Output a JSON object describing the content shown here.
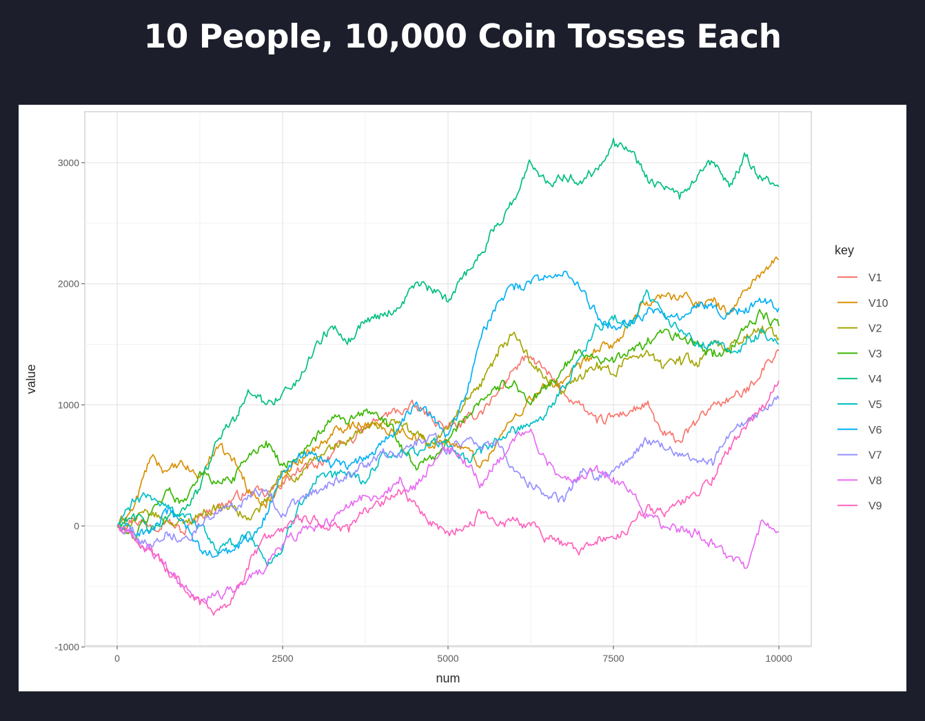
{
  "slide": {
    "title": "10 People, 10,000 Coin Tosses Each"
  },
  "chart_data": {
    "type": "line",
    "title": "10 People, 10,000 Coin Tosses Each",
    "xlabel": "num",
    "ylabel": "value",
    "xlim": [
      0,
      10000
    ],
    "ylim": [
      -1000,
      3400
    ],
    "x_ticks": [
      0,
      2500,
      5000,
      7500,
      10000
    ],
    "y_ticks": [
      -1000,
      0,
      1000,
      2000,
      3000
    ],
    "x_tick_labels": [
      "0",
      "2500",
      "5000",
      "7500",
      "10000"
    ],
    "y_tick_labels": [
      "-1000",
      "0",
      "1000",
      "2000",
      "3000"
    ],
    "grid": true,
    "legend": {
      "title": "key",
      "placement": "right"
    },
    "x": [
      0,
      250,
      500,
      750,
      1000,
      1250,
      1500,
      1750,
      2000,
      2250,
      2500,
      2750,
      3000,
      3250,
      3500,
      3750,
      4000,
      4250,
      4500,
      4750,
      5000,
      5250,
      5500,
      5750,
      6000,
      6250,
      6500,
      6750,
      7000,
      7250,
      7500,
      7750,
      8000,
      8250,
      8500,
      8750,
      9000,
      9250,
      9500,
      9750,
      10000
    ],
    "series": [
      {
        "name": "V1",
        "color": "#f8766d",
        "values": [
          0,
          60,
          10,
          50,
          -60,
          90,
          150,
          220,
          290,
          250,
          360,
          450,
          500,
          600,
          700,
          800,
          900,
          950,
          980,
          900,
          800,
          850,
          950,
          1100,
          1300,
          1400,
          1250,
          1100,
          1000,
          850,
          900,
          950,
          1000,
          750,
          700,
          850,
          1000,
          1050,
          1100,
          1300,
          1450
        ]
      },
      {
        "name": "V10",
        "color": "#d89000",
        "values": [
          0,
          150,
          560,
          450,
          500,
          400,
          650,
          550,
          300,
          150,
          400,
          550,
          650,
          750,
          850,
          850,
          800,
          800,
          750,
          650,
          700,
          650,
          500,
          700,
          900,
          1050,
          1150,
          1200,
          1300,
          1450,
          1500,
          1650,
          1850,
          1900,
          1900,
          1850,
          1850,
          1750,
          1950,
          2100,
          2200
        ]
      },
      {
        "name": "V2",
        "color": "#a3a500",
        "values": [
          0,
          50,
          100,
          50,
          20,
          100,
          150,
          150,
          50,
          200,
          450,
          400,
          550,
          650,
          700,
          800,
          850,
          850,
          750,
          700,
          800,
          1000,
          1150,
          1400,
          1600,
          1350,
          1200,
          1100,
          1250,
          1350,
          1250,
          1400,
          1450,
          1300,
          1400,
          1350,
          1500,
          1450,
          1550,
          1650,
          1550
        ]
      },
      {
        "name": "V3",
        "color": "#39b600",
        "values": [
          0,
          -100,
          100,
          300,
          200,
          450,
          350,
          400,
          600,
          700,
          500,
          600,
          700,
          900,
          850,
          950,
          900,
          700,
          500,
          550,
          700,
          900,
          1050,
          1150,
          1200,
          1000,
          1150,
          1300,
          1450,
          1400,
          1350,
          1450,
          1500,
          1600,
          1550,
          1500,
          1400,
          1450,
          1650,
          1750,
          1650
        ]
      },
      {
        "name": "V4",
        "color": "#00bf7d",
        "values": [
          0,
          100,
          -50,
          50,
          150,
          300,
          700,
          900,
          1100,
          1000,
          1100,
          1200,
          1500,
          1650,
          1550,
          1700,
          1750,
          1800,
          2000,
          1950,
          1850,
          2100,
          2250,
          2500,
          2700,
          3000,
          2850,
          2900,
          2850,
          2950,
          3200,
          3100,
          2900,
          2800,
          2700,
          2850,
          3000,
          2800,
          3050,
          2850,
          2800
        ]
      },
      {
        "name": "V5",
        "color": "#00bfc4",
        "values": [
          0,
          200,
          250,
          150,
          100,
          0,
          -200,
          -150,
          -50,
          -300,
          -200,
          200,
          350,
          400,
          450,
          350,
          600,
          600,
          600,
          700,
          650,
          550,
          600,
          700,
          800,
          850,
          950,
          1150,
          1400,
          1650,
          1700,
          1650,
          1950,
          1750,
          1600,
          1500,
          1500,
          1450,
          1500,
          1600,
          1500
        ]
      },
      {
        "name": "V6",
        "color": "#00b0f6",
        "values": [
          0,
          -50,
          -50,
          100,
          50,
          -200,
          -250,
          -200,
          -100,
          100,
          450,
          600,
          600,
          500,
          500,
          550,
          700,
          800,
          1000,
          900,
          750,
          1050,
          1550,
          1850,
          1950,
          2000,
          2050,
          2100,
          1950,
          1750,
          1650,
          1700,
          1750,
          1750,
          1700,
          1800,
          1800,
          1750,
          1800,
          1850,
          1800
        ]
      },
      {
        "name": "V7",
        "color": "#9590ff",
        "values": [
          0,
          -50,
          -150,
          -50,
          -100,
          0,
          100,
          150,
          250,
          300,
          100,
          200,
          300,
          350,
          450,
          500,
          600,
          600,
          700,
          750,
          650,
          700,
          650,
          700,
          450,
          350,
          250,
          200,
          450,
          400,
          450,
          550,
          700,
          650,
          600,
          550,
          500,
          750,
          850,
          950,
          1050
        ]
      },
      {
        "name": "V8",
        "color": "#e76bf3",
        "values": [
          0,
          -100,
          -200,
          -350,
          -500,
          -650,
          -550,
          -550,
          -400,
          -350,
          -150,
          -50,
          0,
          50,
          150,
          250,
          250,
          350,
          300,
          500,
          650,
          550,
          350,
          550,
          700,
          800,
          500,
          400,
          400,
          500,
          400,
          300,
          100,
          0,
          -50,
          -50,
          -150,
          -250,
          -350,
          50,
          -50
        ]
      },
      {
        "name": "V9",
        "color": "#ff62bc",
        "values": [
          0,
          -100,
          -200,
          -350,
          -500,
          -650,
          -700,
          -600,
          -300,
          -100,
          -50,
          50,
          50,
          0,
          -50,
          150,
          200,
          300,
          200,
          0,
          -50,
          0,
          100,
          0,
          50,
          0,
          -100,
          -150,
          -200,
          -150,
          -100,
          0,
          150,
          100,
          200,
          250,
          400,
          650,
          800,
          1000,
          1200
        ]
      }
    ]
  }
}
